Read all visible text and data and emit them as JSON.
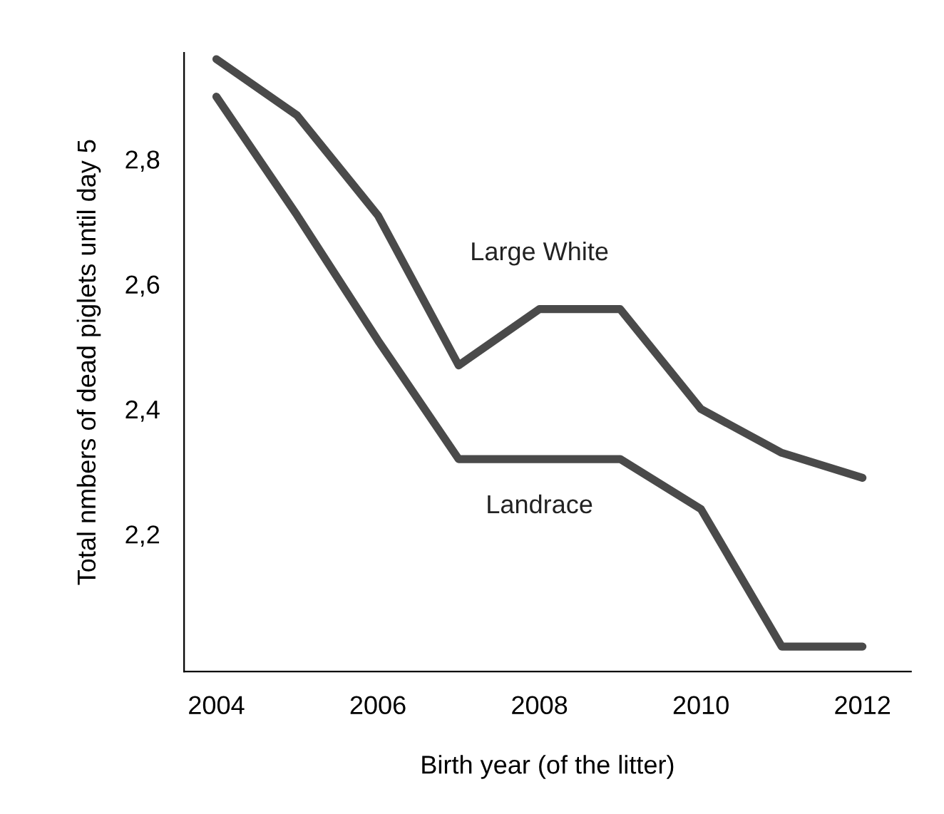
{
  "chart_data": {
    "type": "line",
    "xlabel": "Birth year (of the litter)",
    "ylabel": "Total nmbers of dead piglets until day 5",
    "x": [
      2004,
      2005,
      2006,
      2007,
      2008,
      2009,
      2010,
      2011,
      2012
    ],
    "series": [
      {
        "name": "Large White",
        "color": "#4a4a4a",
        "values": [
          2.96,
          2.87,
          2.71,
          2.47,
          2.56,
          2.56,
          2.4,
          2.33,
          2.29
        ]
      },
      {
        "name": "Landrace",
        "color": "#4a4a4a",
        "values": [
          2.9,
          2.71,
          2.51,
          2.32,
          2.32,
          2.32,
          2.24,
          2.02,
          2.02
        ]
      }
    ],
    "xlim": [
      2003.6,
      2012.6
    ],
    "ylim": [
      1.98,
      2.97
    ],
    "xticks": [
      2004,
      2006,
      2008,
      2010,
      2012
    ],
    "yticks": [
      {
        "value": 2.2,
        "label": "2,2"
      },
      {
        "value": 2.4,
        "label": "2,4"
      },
      {
        "value": 2.6,
        "label": "2,6"
      },
      {
        "value": 2.8,
        "label": "2,8"
      }
    ],
    "grid": false,
    "legend": false,
    "marker": "none",
    "line_style": "solid"
  }
}
